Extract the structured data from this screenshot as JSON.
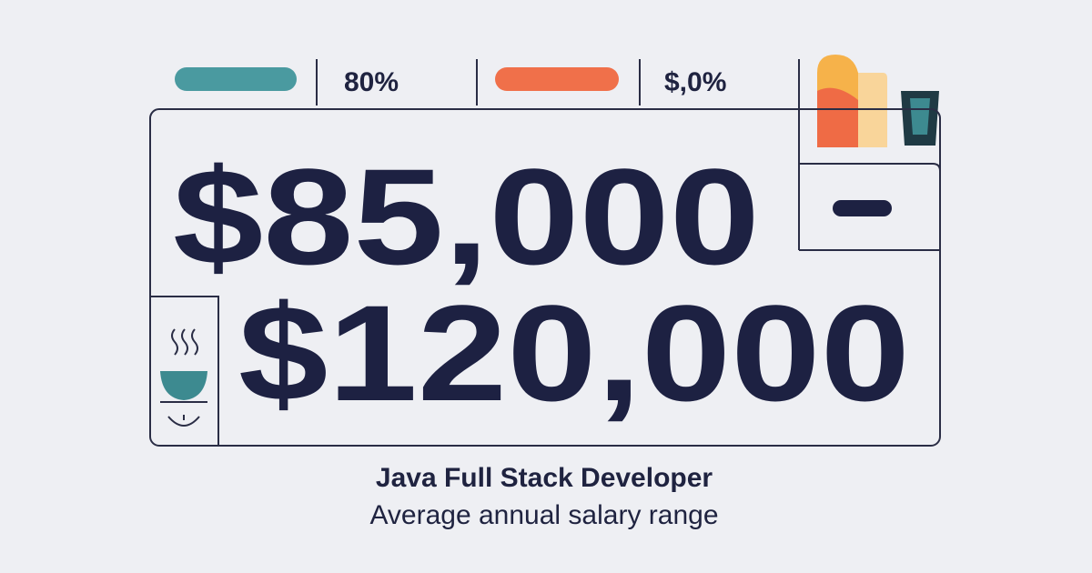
{
  "top_bar": {
    "stat_1": "80%",
    "stat_2": "$,0%"
  },
  "salary": {
    "low": "$85,000",
    "high": "$120,000"
  },
  "caption": {
    "title": "Java Full Stack Developer",
    "subtitle": "Average annual salary range"
  }
}
